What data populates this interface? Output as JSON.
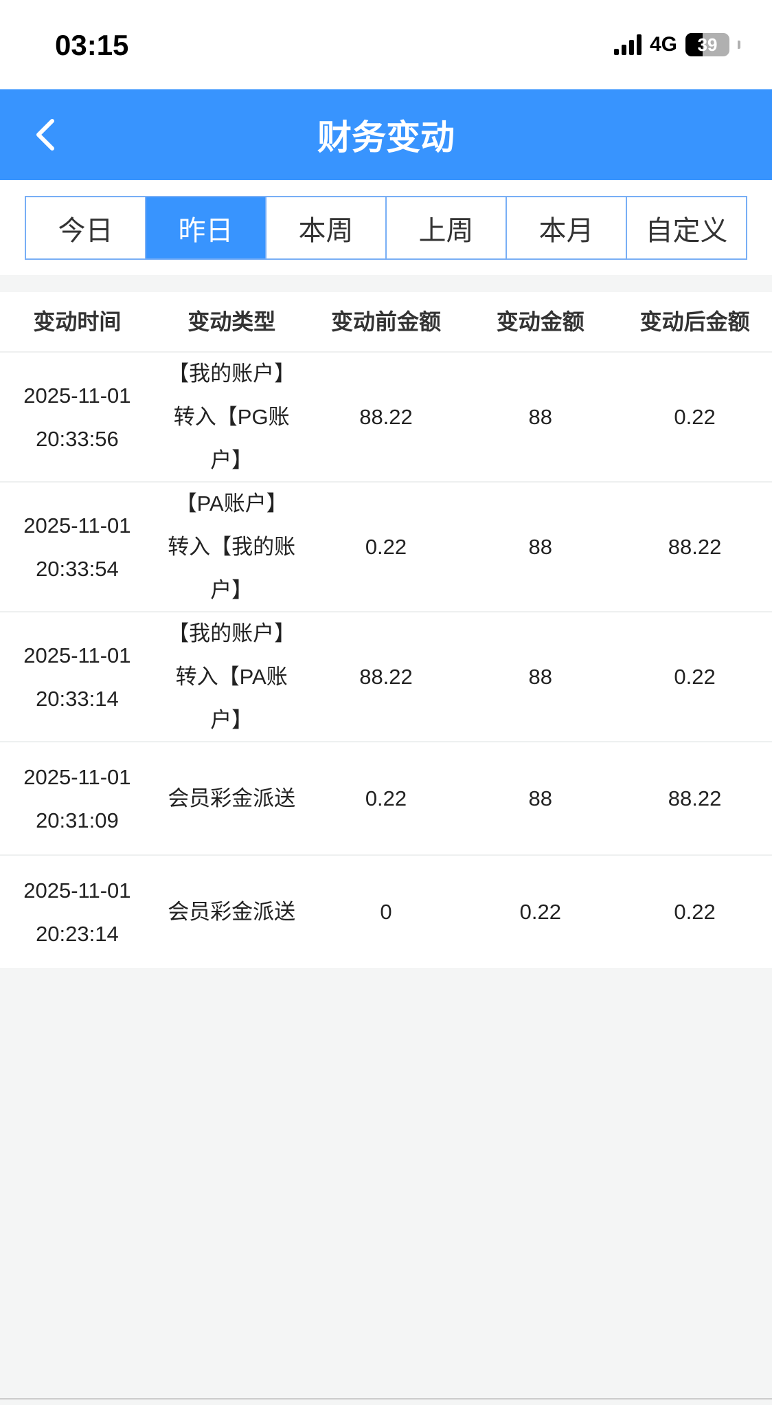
{
  "status_bar": {
    "time": "03:15",
    "network": "4G",
    "battery": "39",
    "battery_level": 0.39
  },
  "header": {
    "title": "财务变动",
    "back_icon": "chevron-left-icon"
  },
  "tabs": [
    {
      "label": "今日",
      "active": false
    },
    {
      "label": "昨日",
      "active": true
    },
    {
      "label": "本周",
      "active": false
    },
    {
      "label": "上周",
      "active": false
    },
    {
      "label": "本月",
      "active": false
    },
    {
      "label": "自定义",
      "active": false
    }
  ],
  "table": {
    "headers": [
      "变动时间",
      "变动类型",
      "变动前金额",
      "变动金额",
      "变动后金额"
    ],
    "rows": [
      {
        "date": "2025-11-01",
        "time": "20:33:56",
        "type": "【我的账户】转入【PG账户】",
        "before": "88.22",
        "amount": "88",
        "after": "0.22"
      },
      {
        "date": "2025-11-01",
        "time": "20:33:54",
        "type": "【PA账户】转入【我的账户】",
        "before": "0.22",
        "amount": "88",
        "after": "88.22"
      },
      {
        "date": "2025-11-01",
        "time": "20:33:14",
        "type": "【我的账户】转入【PA账户】",
        "before": "88.22",
        "amount": "88",
        "after": "0.22"
      },
      {
        "date": "2025-11-01",
        "time": "20:31:09",
        "type": "会员彩金派送",
        "before": "0.22",
        "amount": "88",
        "after": "88.22"
      },
      {
        "date": "2025-11-01",
        "time": "20:23:14",
        "type": "会员彩金派送",
        "before": "0",
        "amount": "0.22",
        "after": "0.22"
      }
    ]
  }
}
